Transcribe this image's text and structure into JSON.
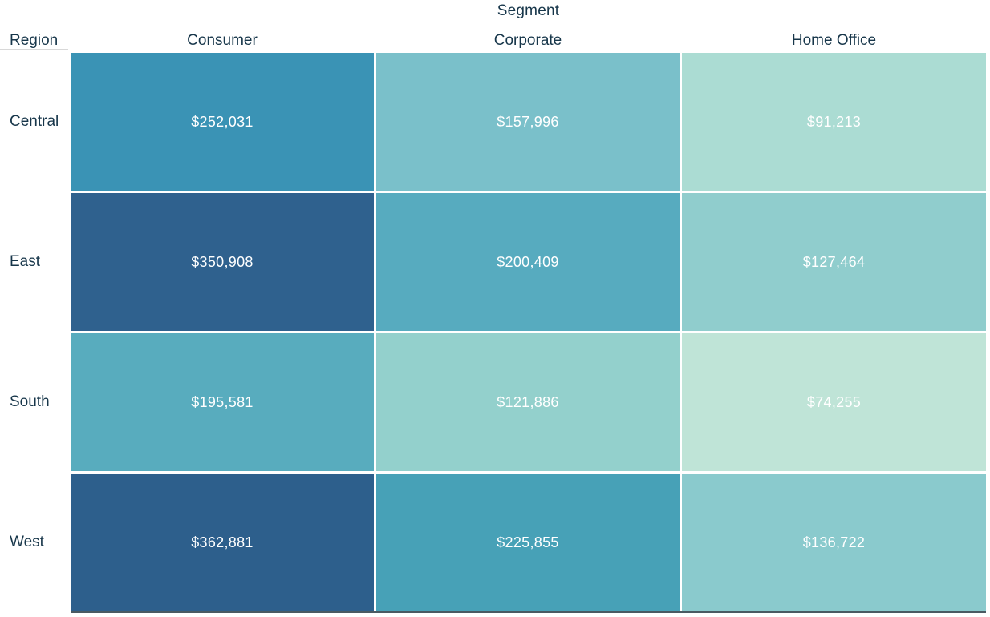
{
  "title": "Segment",
  "corner_label": "Region",
  "columns": [
    "Consumer",
    "Corporate",
    "Home Office"
  ],
  "rows": [
    {
      "label": "Central",
      "cells": [
        {
          "value": "$252,031",
          "color": "#3a93b5"
        },
        {
          "value": "$157,996",
          "color": "#7ac0ca"
        },
        {
          "value": "$91,213",
          "color": "#abdcd3"
        }
      ]
    },
    {
      "label": "East",
      "cells": [
        {
          "value": "$350,908",
          "color": "#2f618e"
        },
        {
          "value": "$200,409",
          "color": "#57abbf"
        },
        {
          "value": "$127,464",
          "color": "#90cdcd"
        }
      ]
    },
    {
      "label": "South",
      "cells": [
        {
          "value": "$195,581",
          "color": "#58acbe"
        },
        {
          "value": "$121,886",
          "color": "#93d0cc"
        },
        {
          "value": "$74,255",
          "color": "#bfe4d7"
        }
      ]
    },
    {
      "label": "West",
      "cells": [
        {
          "value": "$362,881",
          "color": "#2d5f8c"
        },
        {
          "value": "$225,855",
          "color": "#47a1b7"
        },
        {
          "value": "$136,722",
          "color": "#8acacd"
        }
      ]
    }
  ],
  "colors": {
    "header_text": "#17364a",
    "cell_text": "#ffffff",
    "region_underline": "#d8d8d8",
    "bottom_rule": "#4a5a62"
  },
  "chart_data": {
    "type": "heatmap",
    "title": "Segment",
    "xlabel": "Segment",
    "ylabel": "Region",
    "x_categories": [
      "Consumer",
      "Corporate",
      "Home Office"
    ],
    "y_categories": [
      "Central",
      "East",
      "South",
      "West"
    ],
    "values": [
      [
        252031,
        157996,
        91213
      ],
      [
        350908,
        200409,
        127464
      ],
      [
        195581,
        121886,
        74255
      ],
      [
        362881,
        225855,
        136722
      ]
    ],
    "value_format": "$#,##0",
    "color_scale": {
      "min": 74255,
      "max": 362881,
      "min_color": "#bfe4d7",
      "max_color": "#2d5f8c"
    },
    "legend": "none",
    "grid": "off"
  }
}
